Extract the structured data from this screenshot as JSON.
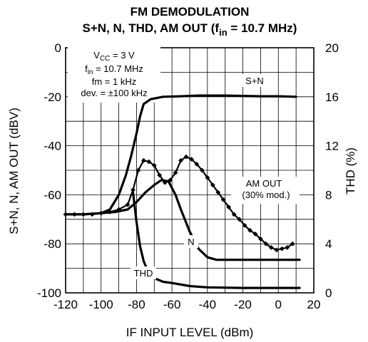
{
  "chart_data": {
    "type": "line",
    "title_line1": "FM DEMODULATION",
    "title_line2_main": "S+N, N, THD, AM OUT (f",
    "title_line2_sub": "in",
    "title_line2_end": " = 10.7 MHz)",
    "xlabel": "IF INPUT LEVEL (dBm)",
    "ylabel_left": "S+N, N, AM OUT (dBV)",
    "ylabel_right": "THD (%)",
    "xlim": [
      -120,
      20
    ],
    "ylim_left": [
      -100,
      0
    ],
    "ylim_right": [
      0,
      20
    ],
    "x_ticks": [
      "-120",
      "-100",
      "-80",
      "-60",
      "-40",
      "-20",
      "0",
      "20"
    ],
    "y_left_ticks": [
      "0",
      "-20",
      "-40",
      "-60",
      "-80",
      "-100"
    ],
    "y_right_ticks": [
      "20",
      "16",
      "12",
      "8",
      "4",
      "0"
    ],
    "grid": true,
    "conditions": {
      "vcc_main": "V",
      "vcc_sub": "CC",
      "vcc_end": " = 3 V",
      "fin_main": "f",
      "fin_sub": "in",
      "fin_end": " = 10.7 MHz",
      "fm": "fm = 1 kHz",
      "dev": "dev. = ±100 kHz"
    },
    "labels": {
      "sn": "S+N",
      "n": "N",
      "thd": "THD",
      "am1": "AM OUT",
      "am2": "(30% mod.)"
    },
    "series": [
      {
        "name": "S+N",
        "axis": "left",
        "x": [
          -120,
          -110,
          -100,
          -95,
          -90,
          -86,
          -83,
          -80,
          -78,
          -76,
          -72,
          -65,
          -55,
          -45,
          -30,
          -10,
          0,
          10
        ],
        "y": [
          -68,
          -68,
          -67.5,
          -66,
          -60,
          -52,
          -44,
          -35,
          -28,
          -23,
          -21,
          -20,
          -19.8,
          -19.5,
          -19.5,
          -19.8,
          -19.8,
          -20
        ]
      },
      {
        "name": "N",
        "axis": "left",
        "x": [
          -120,
          -110,
          -100,
          -92,
          -85,
          -80,
          -75,
          -70,
          -66,
          -62,
          -58,
          -55,
          -50,
          -45,
          -40,
          -35,
          -30,
          -20,
          -10,
          0,
          12
        ],
        "y": [
          -68,
          -68,
          -67.5,
          -67,
          -66,
          -63,
          -59,
          -56,
          -54,
          -54.5,
          -60,
          -66,
          -75,
          -82,
          -85.5,
          -86.5,
          -86.5,
          -86.5,
          -86.5,
          -86.5,
          -86.5
        ]
      },
      {
        "name": "THD",
        "axis": "right",
        "x": [
          -82,
          -80,
          -78,
          -76,
          -74,
          -72,
          -70,
          -65,
          -60,
          -50,
          -40,
          -20,
          0,
          12
        ],
        "y": [
          8.2,
          5.8,
          3.8,
          2.6,
          1.9,
          1.5,
          1.2,
          0.9,
          0.8,
          0.55,
          0.45,
          0.4,
          0.4,
          0.4
        ]
      },
      {
        "name": "AM OUT",
        "axis": "left",
        "x": [
          -120,
          -115,
          -110,
          -105,
          -100,
          -95,
          -90,
          -85,
          -82,
          -79,
          -76,
          -73,
          -70,
          -67,
          -64,
          -61,
          -58,
          -55,
          -52,
          -49,
          -46,
          -43,
          -40,
          -37,
          -34,
          -31,
          -28,
          -25,
          -22,
          -19,
          -16,
          -13,
          -10,
          -7,
          -4,
          -1,
          2,
          5,
          8
        ],
        "y": [
          -68,
          -68,
          -68,
          -68,
          -67.5,
          -67,
          -66,
          -64,
          -58,
          -50,
          -46,
          -46.5,
          -48,
          -52,
          -55,
          -54,
          -51,
          -46,
          -44.5,
          -45.5,
          -47.5,
          -50,
          -53,
          -56,
          -59,
          -62,
          -65,
          -68,
          -70,
          -72.5,
          -74.5,
          -76,
          -78,
          -80,
          -81.5,
          -82.5,
          -82,
          -81.5,
          -80
        ]
      }
    ]
  }
}
